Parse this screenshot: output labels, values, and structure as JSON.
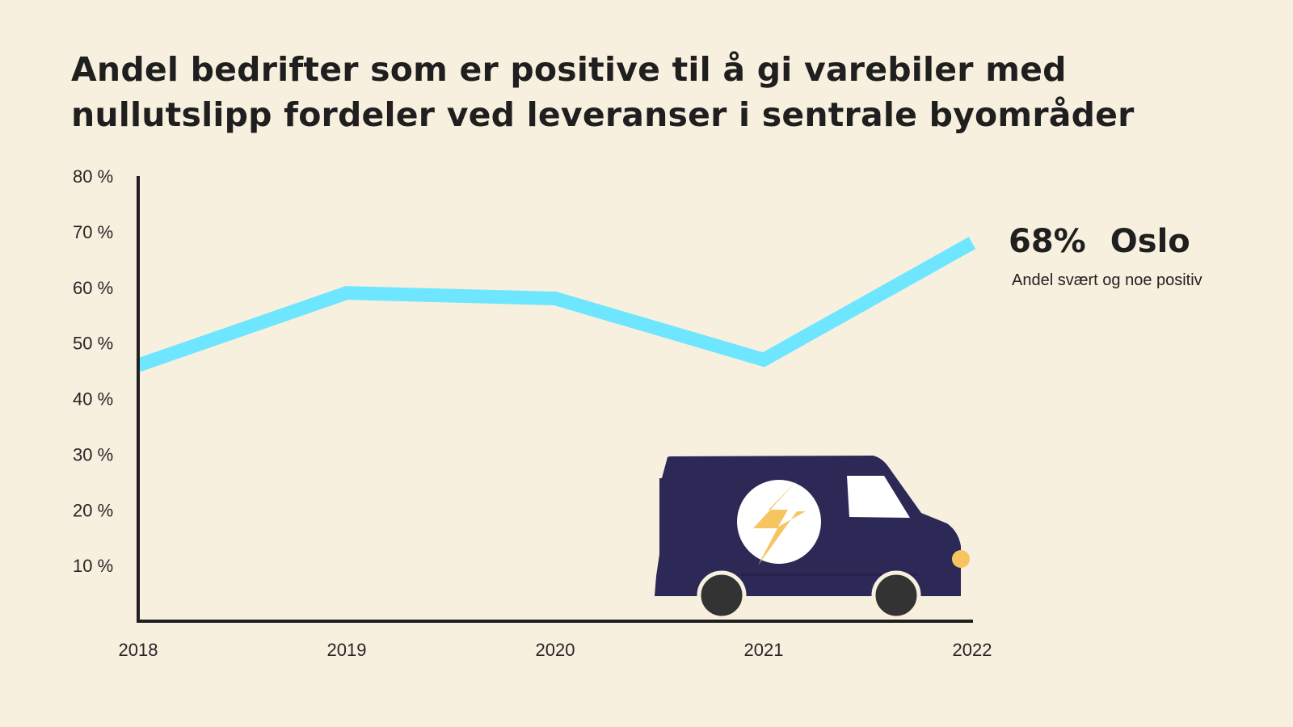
{
  "chart_data": {
    "type": "line",
    "title": "Andel bedrifter som er positive til å gi varebiler med nullutslipp fordeler ved leveranser i sentrale byområder",
    "title_lines": [
      "Andel bedrifter som er positive til å gi varebiler med",
      "nullutslipp fordeler ved leveranser i sentrale byområder"
    ],
    "xlabel": "",
    "ylabel": "",
    "x": [
      "2018",
      "2019",
      "2020",
      "2021",
      "2022"
    ],
    "series": [
      {
        "name": "Oslo",
        "values": [
          46,
          59,
          58,
          47,
          68
        ],
        "color": "#6fe6ff"
      }
    ],
    "ylim": [
      0,
      80
    ],
    "y_ticks": [
      10,
      20,
      30,
      40,
      50,
      60,
      70,
      80
    ],
    "y_tick_labels": [
      "10 %",
      "20 %",
      "30 %",
      "40 %",
      "50 %",
      "60 %",
      "70 %",
      "80 %"
    ],
    "grid": false,
    "annotation": {
      "value": "68%",
      "series_label": "Oslo",
      "subtitle": "Andel svært og noe positiv"
    }
  },
  "colors": {
    "background": "#f8f0de",
    "line": "#6fe6ff",
    "axis": "#1f1f1f",
    "van_body": "#2c2957",
    "van_badge": "#ffffff",
    "bolt": "#f7c462",
    "headlight": "#f7c462",
    "wheel": "#333333"
  },
  "icons": {
    "van": "electric-van-icon",
    "bolt": "lightning-bolt-icon"
  }
}
